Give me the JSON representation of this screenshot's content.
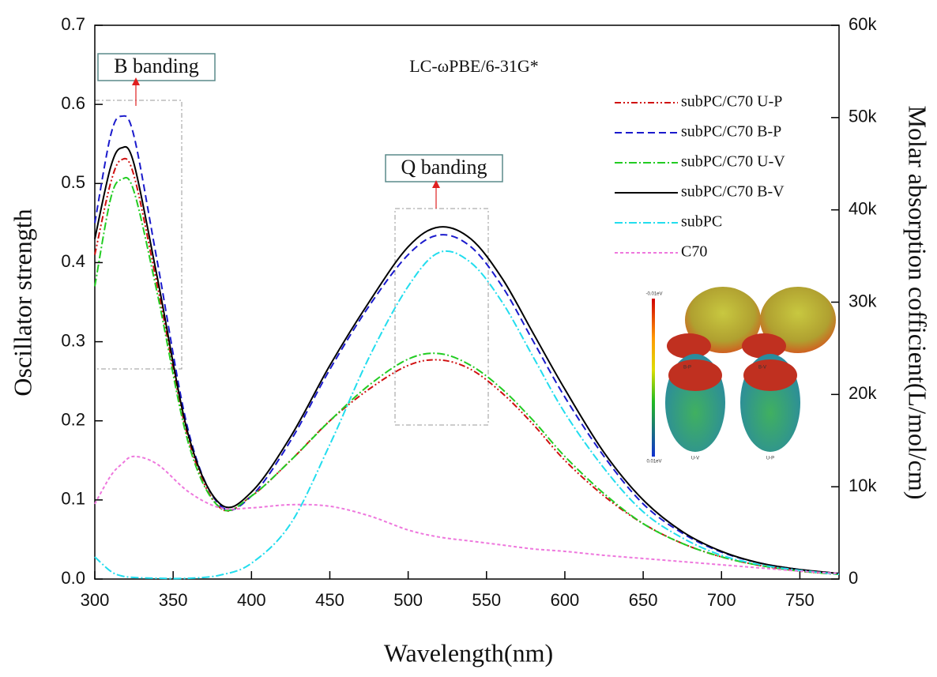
{
  "chart_data": {
    "type": "line",
    "annotation": "LC-ωPBE/6-31G*",
    "annotations": [
      "B banding",
      "Q banding"
    ],
    "x_label": "Wavelength(nm)",
    "y_label": "Oscillator strength",
    "y2_label": "Molar absorption cofficient(L/mol/cm)",
    "x": [
      300,
      310,
      317,
      325,
      340,
      360,
      380,
      400,
      425,
      450,
      475,
      500,
      520,
      540,
      560,
      580,
      600,
      625,
      650,
      675,
      700,
      725,
      750,
      775
    ],
    "series": [
      {
        "name": "subPC/C70 U-P",
        "color": "#d01010",
        "values": [
          0.41,
          0.5,
          0.53,
          0.51,
          0.37,
          0.175,
          0.09,
          0.105,
          0.15,
          0.2,
          0.24,
          0.27,
          0.277,
          0.265,
          0.235,
          0.195,
          0.15,
          0.105,
          0.07,
          0.045,
          0.028,
          0.017,
          0.01,
          0.006
        ]
      },
      {
        "name": "subPC/C70 B-P",
        "color": "#1a1acc",
        "values": [
          0.45,
          0.56,
          0.585,
          0.56,
          0.4,
          0.185,
          0.093,
          0.105,
          0.175,
          0.265,
          0.345,
          0.41,
          0.435,
          0.42,
          0.37,
          0.3,
          0.23,
          0.155,
          0.095,
          0.058,
          0.034,
          0.02,
          0.012,
          0.007
        ]
      },
      {
        "name": "subPC/C70 U-V",
        "color": "#22cc22",
        "values": [
          0.37,
          0.48,
          0.505,
          0.49,
          0.36,
          0.17,
          0.09,
          0.105,
          0.15,
          0.2,
          0.245,
          0.278,
          0.285,
          0.27,
          0.24,
          0.2,
          0.155,
          0.108,
          0.07,
          0.045,
          0.028,
          0.017,
          0.01,
          0.006
        ]
      },
      {
        "name": "subPC/C70 B-V",
        "color": "#000000",
        "values": [
          0.43,
          0.52,
          0.545,
          0.525,
          0.38,
          0.18,
          0.095,
          0.11,
          0.18,
          0.27,
          0.35,
          0.42,
          0.445,
          0.43,
          0.38,
          0.31,
          0.24,
          0.16,
          0.1,
          0.06,
          0.035,
          0.02,
          0.012,
          0.007
        ]
      },
      {
        "name": "subPC",
        "color": "#22ddee",
        "values": [
          0.028,
          0.01,
          0.004,
          0.002,
          0.001,
          0.001,
          0.005,
          0.02,
          0.07,
          0.17,
          0.28,
          0.37,
          0.413,
          0.4,
          0.35,
          0.28,
          0.21,
          0.14,
          0.085,
          0.052,
          0.03,
          0.018,
          0.011,
          0.006
        ]
      },
      {
        "name": "C70",
        "color": "#ee77dd",
        "values": [
          0.095,
          0.13,
          0.145,
          0.155,
          0.145,
          0.11,
          0.09,
          0.09,
          0.094,
          0.092,
          0.08,
          0.062,
          0.053,
          0.048,
          0.043,
          0.038,
          0.035,
          0.03,
          0.026,
          0.022,
          0.018,
          0.014,
          0.01,
          0.007
        ]
      }
    ],
    "xlim": [
      300,
      775
    ],
    "xticks": [
      300,
      350,
      400,
      450,
      500,
      550,
      600,
      650,
      700,
      750
    ],
    "ylim": [
      0,
      0.7
    ],
    "yticks": [
      {
        "value": 0,
        "label": "0.0"
      },
      0.1,
      0.2,
      0.3,
      0.4,
      0.5,
      0.6,
      0.7
    ],
    "y2lim": [
      0,
      60000
    ],
    "y2ticks": [
      0,
      {
        "value": 10000,
        "label": "10k"
      },
      {
        "value": 20000,
        "label": "20k"
      },
      {
        "value": 30000,
        "label": "30k"
      },
      {
        "value": 40000,
        "label": "40k"
      },
      {
        "value": 50000,
        "label": "50k"
      },
      {
        "value": 60000,
        "label": "60k"
      }
    ],
    "legend": "upper right",
    "inset_labels": [
      "-0.01eV",
      "0.01eV",
      "B-P",
      "B-V",
      "U-V",
      "U-P"
    ]
  }
}
